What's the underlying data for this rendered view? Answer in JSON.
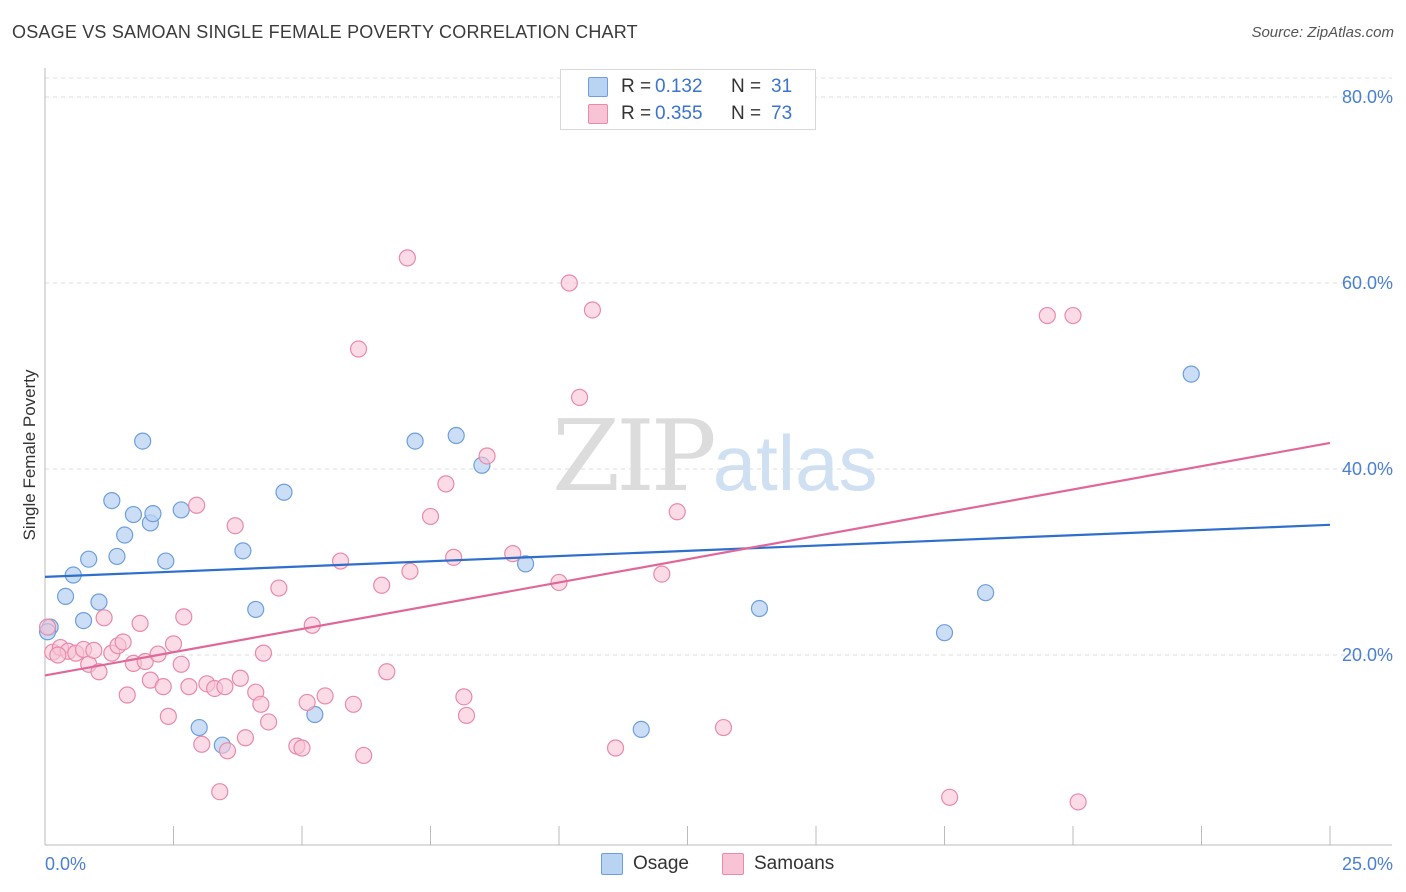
{
  "header": {
    "title": "OSAGE VS SAMOAN SINGLE FEMALE POVERTY CORRELATION CHART",
    "source": "Source: ZipAtlas.com"
  },
  "watermark": {
    "zip": "ZIP",
    "atlas": "atlas"
  },
  "legend_top": {
    "rows": [
      {
        "r_label": "R =",
        "r_value": "0.132",
        "n_label": "N =",
        "n_value": "31"
      },
      {
        "r_label": "R =",
        "r_value": "0.355",
        "n_label": "N =",
        "n_value": "73"
      }
    ]
  },
  "legend_bottom": {
    "items": [
      {
        "label": "Osage"
      },
      {
        "label": "Samoans"
      }
    ]
  },
  "colors": {
    "osage_fill": "#b9d3f3",
    "osage_stroke": "#6d9fdc",
    "osage_line": "#2f6fcc",
    "samoan_fill": "#f8c4d5",
    "samoan_stroke": "#e98aa8",
    "samoan_line": "#e0679a",
    "tick_label": "#4a7fd1",
    "grid": "#dddddd"
  },
  "chart_data": {
    "type": "scatter",
    "title": "OSAGE VS SAMOAN SINGLE FEMALE POVERTY CORRELATION CHART",
    "xlabel": "",
    "ylabel": "Single Female Poverty",
    "xlim": [
      0,
      25
    ],
    "ylim": [
      0,
      82
    ],
    "x_tick_labels": [
      "0.0%",
      "25.0%"
    ],
    "y_ticks": [
      20,
      40,
      60,
      80
    ],
    "y_tick_labels": [
      "20.0%",
      "40.0%",
      "60.0%",
      "80.0%"
    ],
    "grid": "horizontal dashed",
    "series": [
      {
        "name": "Osage",
        "r": 0.132,
        "n": 31,
        "trend": {
          "x": [
            0,
            25
          ],
          "y": [
            28.4,
            34.0
          ]
        },
        "points": [
          [
            0.1,
            23.0
          ],
          [
            0.4,
            26.3
          ],
          [
            0.55,
            28.6
          ],
          [
            0.75,
            23.7
          ],
          [
            0.85,
            30.3
          ],
          [
            1.05,
            25.7
          ],
          [
            1.3,
            36.6
          ],
          [
            1.4,
            30.6
          ],
          [
            1.55,
            32.9
          ],
          [
            1.72,
            35.1
          ],
          [
            1.9,
            43.0
          ],
          [
            2.05,
            34.2
          ],
          [
            2.1,
            35.2
          ],
          [
            2.35,
            30.1
          ],
          [
            2.65,
            35.6
          ],
          [
            3.0,
            12.2
          ],
          [
            3.45,
            10.3
          ],
          [
            3.85,
            31.2
          ],
          [
            4.1,
            24.9
          ],
          [
            4.65,
            37.5
          ],
          [
            5.25,
            13.6
          ],
          [
            7.2,
            43.0
          ],
          [
            8.0,
            43.6
          ],
          [
            8.5,
            40.4
          ],
          [
            9.35,
            29.8
          ],
          [
            11.6,
            12.0
          ],
          [
            13.9,
            25.0
          ],
          [
            17.5,
            22.4
          ],
          [
            18.3,
            26.7
          ],
          [
            22.3,
            50.2
          ],
          [
            0.05,
            22.5
          ]
        ]
      },
      {
        "name": "Samoans",
        "r": 0.355,
        "n": 73,
        "trend": {
          "x": [
            0,
            25
          ],
          "y": [
            17.8,
            42.8
          ]
        },
        "points": [
          [
            0.05,
            23.0
          ],
          [
            0.15,
            20.3
          ],
          [
            0.3,
            20.8
          ],
          [
            0.45,
            20.4
          ],
          [
            0.6,
            20.2
          ],
          [
            0.75,
            20.6
          ],
          [
            0.85,
            19.0
          ],
          [
            1.05,
            18.2
          ],
          [
            1.15,
            24.0
          ],
          [
            1.3,
            20.2
          ],
          [
            1.42,
            21.0
          ],
          [
            1.52,
            21.4
          ],
          [
            1.6,
            15.7
          ],
          [
            1.72,
            19.1
          ],
          [
            1.85,
            23.4
          ],
          [
            1.95,
            19.3
          ],
          [
            2.05,
            17.3
          ],
          [
            2.2,
            20.1
          ],
          [
            2.3,
            16.6
          ],
          [
            2.4,
            13.4
          ],
          [
            2.5,
            21.2
          ],
          [
            2.65,
            19.0
          ],
          [
            2.7,
            24.1
          ],
          [
            2.8,
            16.6
          ],
          [
            2.95,
            36.1
          ],
          [
            3.05,
            10.4
          ],
          [
            3.15,
            16.9
          ],
          [
            3.3,
            16.4
          ],
          [
            3.4,
            5.3
          ],
          [
            3.5,
            16.6
          ],
          [
            3.55,
            9.7
          ],
          [
            3.7,
            33.9
          ],
          [
            3.8,
            17.5
          ],
          [
            3.9,
            11.1
          ],
          [
            4.1,
            16.0
          ],
          [
            4.2,
            14.7
          ],
          [
            4.25,
            20.2
          ],
          [
            4.35,
            12.8
          ],
          [
            4.55,
            27.2
          ],
          [
            4.9,
            10.2
          ],
          [
            5.0,
            10.0
          ],
          [
            5.1,
            14.9
          ],
          [
            5.2,
            23.2
          ],
          [
            5.45,
            15.6
          ],
          [
            5.75,
            30.1
          ],
          [
            6.0,
            14.7
          ],
          [
            6.1,
            52.9
          ],
          [
            6.2,
            9.2
          ],
          [
            6.55,
            27.5
          ],
          [
            6.65,
            18.2
          ],
          [
            7.05,
            62.7
          ],
          [
            7.1,
            29.0
          ],
          [
            7.5,
            34.9
          ],
          [
            7.8,
            38.4
          ],
          [
            7.95,
            30.5
          ],
          [
            8.15,
            15.5
          ],
          [
            8.2,
            13.5
          ],
          [
            8.6,
            41.4
          ],
          [
            9.1,
            30.9
          ],
          [
            10.0,
            27.8
          ],
          [
            10.2,
            60.0
          ],
          [
            10.4,
            47.7
          ],
          [
            10.65,
            57.1
          ],
          [
            11.1,
            10.0
          ],
          [
            12.0,
            28.7
          ],
          [
            12.3,
            35.4
          ],
          [
            13.2,
            12.2
          ],
          [
            17.6,
            4.7
          ],
          [
            19.5,
            56.5
          ],
          [
            20.0,
            56.5
          ],
          [
            20.1,
            4.2
          ],
          [
            0.25,
            20.0
          ],
          [
            0.95,
            20.5
          ]
        ]
      }
    ]
  }
}
